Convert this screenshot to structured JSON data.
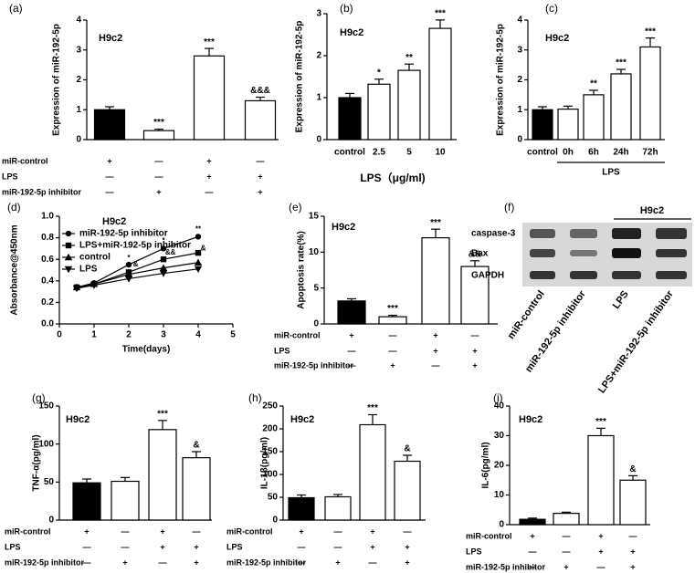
{
  "chart_data": [
    {
      "panel": "(a)",
      "type": "bar",
      "title": "H9c2",
      "ylabel": "Expression of miR-192-5p",
      "values": [
        1.0,
        0.3,
        2.8,
        1.3
      ],
      "errors": [
        0.1,
        0.05,
        0.25,
        0.12
      ],
      "colors": [
        "#000000",
        "#ffffff",
        "#ffffff",
        "#ffffff"
      ],
      "annotations": [
        null,
        "***",
        "***",
        "&&&"
      ],
      "ylim": [
        0,
        4
      ],
      "yticks": [
        0,
        1,
        2,
        3,
        4
      ],
      "conditions": [
        {
          "label": "miR-control",
          "marks": [
            "+",
            "—",
            "+",
            "—"
          ]
        },
        {
          "label": "LPS",
          "marks": [
            "—",
            "—",
            "+",
            "+"
          ]
        },
        {
          "label": "miR-192-5p inhibitor",
          "marks": [
            "—",
            "+",
            "—",
            "+"
          ]
        }
      ]
    },
    {
      "panel": "(b)",
      "type": "bar",
      "title": "H9c2",
      "ylabel": "Expression of miR-192-5p",
      "xlabel": "LPS（μg/ml)",
      "categories": [
        "control",
        "2.5",
        "5",
        "10"
      ],
      "values": [
        1.0,
        1.32,
        1.65,
        2.65
      ],
      "errors": [
        0.1,
        0.12,
        0.15,
        0.2
      ],
      "colors": [
        "#000000",
        "#ffffff",
        "#ffffff",
        "#ffffff"
      ],
      "annotations": [
        null,
        "*",
        "**",
        "***"
      ],
      "ylim": [
        0,
        3
      ],
      "yticks": [
        0,
        1,
        2,
        3
      ]
    },
    {
      "panel": "(c)",
      "type": "bar",
      "title": "H9c2",
      "ylabel": "Expression of miR-192-5p",
      "group_label": "LPS",
      "categories": [
        "control",
        "0h",
        "6h",
        "24h",
        "72h"
      ],
      "values": [
        1.0,
        1.02,
        1.5,
        2.2,
        3.1
      ],
      "errors": [
        0.1,
        0.1,
        0.15,
        0.15,
        0.3
      ],
      "colors": [
        "#000000",
        "#ffffff",
        "#ffffff",
        "#ffffff",
        "#ffffff"
      ],
      "annotations": [
        null,
        null,
        "**",
        "***",
        "***"
      ],
      "ylim": [
        0,
        4
      ],
      "yticks": [
        0,
        1,
        2,
        3,
        4
      ]
    },
    {
      "panel": "(d)",
      "type": "line",
      "title": "H9c2",
      "ylabel": "Absorbance@450nm",
      "xlabel": "Time(days)",
      "x": [
        0.5,
        1,
        2,
        3,
        4
      ],
      "series": [
        {
          "name": "miR-192-5p inhibitor",
          "color": "#000000",
          "marker": "circle",
          "values": [
            0.34,
            0.38,
            0.55,
            0.7,
            0.81
          ]
        },
        {
          "name": "LPS+miR-192-5p inhibitor",
          "color": "#000000",
          "marker": "square",
          "values": [
            0.34,
            0.37,
            0.48,
            0.6,
            0.66
          ]
        },
        {
          "name": "control",
          "color": "#000000",
          "marker": "triangle-up",
          "values": [
            0.34,
            0.37,
            0.46,
            0.52,
            0.57
          ]
        },
        {
          "name": "LPS",
          "color": "#000000",
          "marker": "triangle-down",
          "values": [
            0.33,
            0.36,
            0.42,
            0.47,
            0.51
          ]
        }
      ],
      "annotations": [
        {
          "x": 2,
          "y": 0.61,
          "text": "*"
        },
        {
          "x": 2.2,
          "y": 0.55,
          "text": "&"
        },
        {
          "x": 3,
          "y": 0.77,
          "text": "*"
        },
        {
          "x": 3.2,
          "y": 0.66,
          "text": "&&"
        },
        {
          "x": 4,
          "y": 0.88,
          "text": "**"
        },
        {
          "x": 4.15,
          "y": 0.7,
          "text": "&"
        }
      ],
      "xlim": [
        0,
        5
      ],
      "xticks": [
        0,
        1,
        2,
        3,
        4,
        5
      ],
      "ylim": [
        0,
        1
      ],
      "yticks": [
        {
          "value": 0,
          "label": "0.0"
        },
        0.2,
        0.4,
        0.6,
        0.8,
        {
          "value": 1,
          "label": "1.0"
        }
      ]
    },
    {
      "panel": "(e)",
      "type": "bar",
      "title": "H9c2",
      "ylabel": "Apoptosis rate(%)",
      "values": [
        3.2,
        1.0,
        12.0,
        8.0
      ],
      "errors": [
        0.3,
        0.2,
        1.2,
        0.8
      ],
      "colors": [
        "#000000",
        "#ffffff",
        "#ffffff",
        "#ffffff"
      ],
      "annotations": [
        null,
        "***",
        "***",
        "&&"
      ],
      "ylim": [
        0,
        15
      ],
      "yticks": [
        0,
        5,
        10,
        15
      ],
      "conditions": [
        {
          "label": "miR-control",
          "marks": [
            "+",
            "—",
            "+",
            "—"
          ]
        },
        {
          "label": "LPS",
          "marks": [
            "—",
            "—",
            "+",
            "+"
          ]
        },
        {
          "label": "miR-192-5p inhibitor",
          "marks": [
            "—",
            "+",
            "—",
            "+"
          ]
        }
      ]
    },
    {
      "panel": "(f)",
      "type": "blot",
      "title": "H9c2",
      "rows": [
        "caspase-3",
        "Bax",
        "GAPDH"
      ],
      "lanes": [
        "miR-control",
        "miR-192-5p inhibitor",
        "LPS",
        "LPS+miR-192-5p inhibitor"
      ]
    },
    {
      "panel": "(g)",
      "type": "bar",
      "title": "H9c2",
      "ylabel": "TNF-α(pg/ml)",
      "values": [
        49,
        51,
        119,
        82
      ],
      "errors": [
        5,
        5,
        12,
        8
      ],
      "colors": [
        "#000000",
        "#ffffff",
        "#ffffff",
        "#ffffff"
      ],
      "annotations": [
        null,
        null,
        "***",
        "&"
      ],
      "ylim": [
        0,
        150
      ],
      "yticks": [
        0,
        50,
        100,
        150
      ],
      "conditions": [
        {
          "label": "miR-control",
          "marks": [
            "+",
            "—",
            "+",
            "—"
          ]
        },
        {
          "label": "LPS",
          "marks": [
            "—",
            "—",
            "+",
            "+"
          ]
        },
        {
          "label": "miR-192-5p inhibitor",
          "marks": [
            "—",
            "+",
            "—",
            "+"
          ]
        }
      ]
    },
    {
      "panel": "(h)",
      "type": "bar",
      "title": "H9c2",
      "ylabel": "IL-1β(pg/ml)",
      "values": [
        49,
        51,
        209,
        129
      ],
      "errors": [
        6,
        5,
        22,
        13
      ],
      "colors": [
        "#000000",
        "#ffffff",
        "#ffffff",
        "#ffffff"
      ],
      "annotations": [
        null,
        null,
        "***",
        "&"
      ],
      "ylim": [
        0,
        250
      ],
      "yticks": [
        0,
        50,
        100,
        150,
        200,
        250
      ],
      "conditions": [
        {
          "label": "miR-control",
          "marks": [
            "+",
            "—",
            "+",
            "—"
          ]
        },
        {
          "label": "LPS",
          "marks": [
            "—",
            "—",
            "+",
            "+"
          ]
        },
        {
          "label": "miR-192-5p inhibitor",
          "marks": [
            "—",
            "+",
            "—",
            "+"
          ]
        }
      ]
    },
    {
      "panel": "(i)",
      "type": "bar",
      "title": "H9c2",
      "ylabel": "IL-6(pg/ml)",
      "values": [
        1.8,
        3.8,
        30,
        15
      ],
      "errors": [
        0.4,
        0.4,
        2.5,
        1.5
      ],
      "colors": [
        "#000000",
        "#ffffff",
        "#ffffff",
        "#ffffff"
      ],
      "annotations": [
        null,
        null,
        "***",
        "&"
      ],
      "ylim": [
        0,
        40
      ],
      "yticks": [
        0,
        10,
        20,
        30,
        40
      ],
      "conditions": [
        {
          "label": "miR-control",
          "marks": [
            "+",
            "—",
            "+",
            "—"
          ]
        },
        {
          "label": "LPS",
          "marks": [
            "—",
            "—",
            "+",
            "+"
          ]
        },
        {
          "label": "miR-192-5p inhibitor",
          "marks": [
            "—",
            "+",
            "—",
            "+"
          ]
        }
      ]
    }
  ]
}
